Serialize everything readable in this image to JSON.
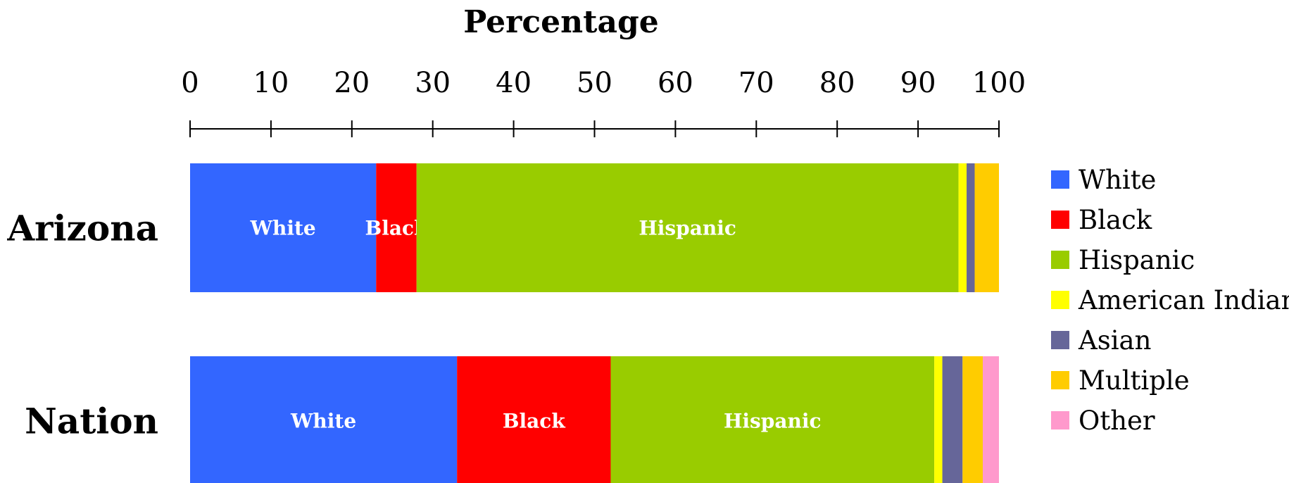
{
  "chart_data": {
    "type": "bar",
    "orientation": "horizontal",
    "stacked": true,
    "title": "Percentage",
    "xlabel": "Percentage",
    "xlim": [
      0,
      100
    ],
    "xticks": [
      0,
      10,
      20,
      30,
      40,
      50,
      60,
      70,
      80,
      90,
      100
    ],
    "categories": [
      "Arizona",
      "Nation"
    ],
    "series": [
      {
        "name": "White",
        "color": "#3366ff",
        "values": [
          23,
          33
        ],
        "labels": [
          "White",
          "White"
        ]
      },
      {
        "name": "Black",
        "color": "#ff0000",
        "values": [
          5,
          19
        ],
        "labels": [
          "Black",
          "Black"
        ]
      },
      {
        "name": "Hispanic",
        "color": "#99cc00",
        "values": [
          67,
          40
        ],
        "labels": [
          "Hispanic",
          "Hispanic"
        ]
      },
      {
        "name": "American Indian",
        "color": "#ffff00",
        "values": [
          1,
          1
        ],
        "labels": [
          "",
          ""
        ]
      },
      {
        "name": "Asian",
        "color": "#666699",
        "values": [
          1,
          2.5
        ],
        "labels": [
          "",
          ""
        ]
      },
      {
        "name": "Multiple",
        "color": "#ffcc00",
        "values": [
          3,
          2.5
        ],
        "labels": [
          "",
          ""
        ]
      },
      {
        "name": "Other",
        "color": "#ff99cc",
        "values": [
          0,
          2
        ],
        "labels": [
          "",
          ""
        ]
      }
    ],
    "legend_position": "right",
    "grid": false
  }
}
